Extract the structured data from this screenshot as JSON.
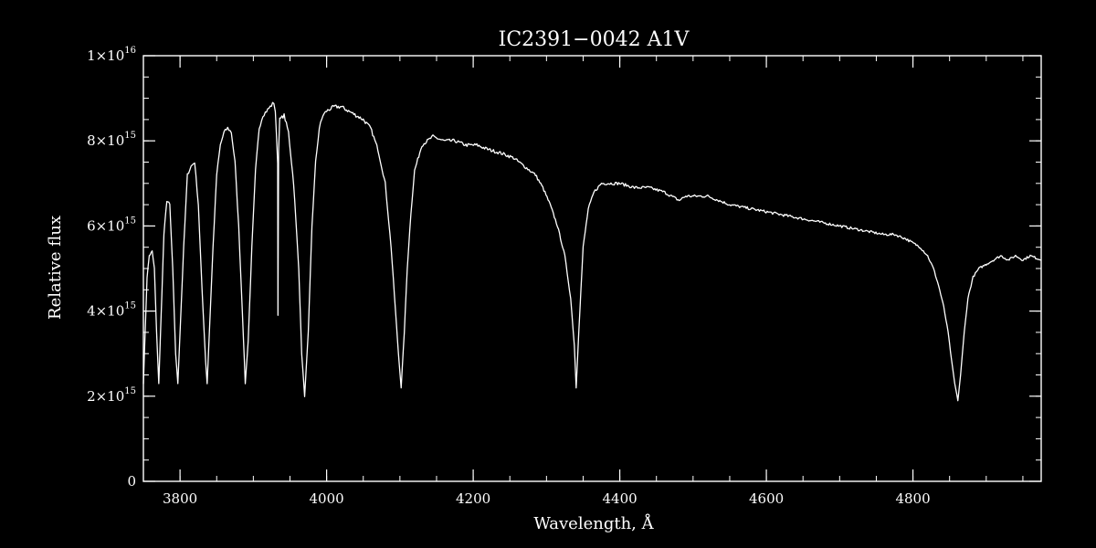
{
  "chart_data": {
    "type": "line",
    "title": "IC2391−0042  A1V",
    "xlabel": "Wavelength, Å",
    "ylabel": "Relative flux",
    "xlim": [
      3750,
      4975
    ],
    "ylim": [
      0,
      1e+16
    ],
    "x_ticks": [
      {
        "value": 3800,
        "label": "3800"
      },
      {
        "value": 4000,
        "label": "4000"
      },
      {
        "value": 4200,
        "label": "4200"
      },
      {
        "value": 4400,
        "label": "4400"
      },
      {
        "value": 4600,
        "label": "4600"
      },
      {
        "value": 4800,
        "label": "4800"
      }
    ],
    "y_ticks": [
      {
        "value": 0,
        "mant": "0",
        "exp": ""
      },
      {
        "value": 2000000000000000.0,
        "mant": "2×10",
        "exp": "15"
      },
      {
        "value": 4000000000000000.0,
        "mant": "4×10",
        "exp": "15"
      },
      {
        "value": 6000000000000000.0,
        "mant": "6×10",
        "exp": "15"
      },
      {
        "value": 8000000000000000.0,
        "mant": "8×10",
        "exp": "15"
      },
      {
        "value": 1e+16,
        "mant": "1×10",
        "exp": "16"
      }
    ],
    "x_minor_step": 50,
    "y_minor_step": 500000000000000.0,
    "grid": false,
    "colors": {
      "background": "#000000",
      "foreground": "#ffffff"
    },
    "series": [
      {
        "x": [
          3750,
          3755,
          3758,
          3762,
          3765,
          3768,
          3771,
          3774,
          3778,
          3782,
          3786,
          3790,
          3794,
          3797,
          3800,
          3805,
          3810,
          3815,
          3820,
          3825,
          3830,
          3835,
          3837,
          3840,
          3845,
          3850,
          3855,
          3860,
          3865,
          3870,
          3875,
          3880,
          3885,
          3889,
          3893,
          3898,
          3903,
          3908,
          3913,
          3918,
          3923,
          3928,
          3930,
          3933.2,
          3933.6,
          3934.5,
          3936,
          3942,
          3948,
          3955,
          3962,
          3966,
          3970,
          3975,
          3980,
          3985,
          3990,
          3995,
          4000,
          4010,
          4020,
          4030,
          4040,
          4050,
          4060,
          4070,
          4080,
          4088,
          4094,
          4098,
          4101.7,
          4106,
          4110,
          4115,
          4120,
          4130,
          4145,
          4160,
          4175,
          4190,
          4205,
          4220,
          4240,
          4255,
          4270,
          4285,
          4295,
          4305,
          4315,
          4325,
          4333,
          4338,
          4340.5,
          4344,
          4350,
          4357,
          4365,
          4375,
          4385,
          4400,
          4420,
          4440,
          4460,
          4481,
          4490,
          4520,
          4550,
          4580,
          4610,
          4640,
          4670,
          4700,
          4730,
          4760,
          4775,
          4790,
          4800,
          4810,
          4820,
          4828,
          4835,
          4842,
          4848,
          4853,
          4857,
          4861.3,
          4865,
          4870,
          4875,
          4882,
          4890,
          4900,
          4910,
          4920,
          4930,
          4940,
          4950,
          4960,
          4975
        ],
        "y": [
          2300000000000000.0,
          4800000000000000.0,
          5300000000000000.0,
          5400000000000000.0,
          5000000000000000.0,
          3500000000000000.0,
          2300000000000000.0,
          3800000000000000.0,
          5800000000000000.0,
          6600000000000000.0,
          6500000000000000.0,
          5000000000000000.0,
          3000000000000000.0,
          2300000000000000.0,
          3500000000000000.0,
          5500000000000000.0,
          7200000000000000.0,
          7400000000000000.0,
          7500000000000000.0,
          6500000000000000.0,
          4500000000000000.0,
          2800000000000000.0,
          2300000000000000.0,
          3500000000000000.0,
          5500000000000000.0,
          7200000000000000.0,
          7900000000000000.0,
          8200000000000000.0,
          8300000000000000.0,
          8200000000000000.0,
          7500000000000000.0,
          6000000000000000.0,
          4000000000000000.0,
          2300000000000000.0,
          3300000000000000.0,
          5500000000000000.0,
          7300000000000000.0,
          8300000000000000.0,
          8600000000000000.0,
          8700000000000000.0,
          8800000000000000.0,
          8900000000000000.0,
          8700000000000000.0,
          7500000000000000.0,
          3900000000000000.0,
          7800000000000000.0,
          8500000000000000.0,
          8600000000000000.0,
          8200000000000000.0,
          7000000000000000.0,
          5000000000000000.0,
          3000000000000000.0,
          2000000000000000.0,
          3500000000000000.0,
          6000000000000000.0,
          7500000000000000.0,
          8300000000000000.0,
          8600000000000000.0,
          8700000000000000.0,
          8800000000000000.0,
          8800000000000000.0,
          8700000000000000.0,
          8600000000000000.0,
          8500000000000000.0,
          8300000000000000.0,
          7800000000000000.0,
          7000000000000000.0,
          5500000000000000.0,
          4000000000000000.0,
          3000000000000000.0,
          2200000000000000.0,
          3500000000000000.0,
          5000000000000000.0,
          6300000000000000.0,
          7300000000000000.0,
          7900000000000000.0,
          8100000000000000.0,
          8000000000000000.0,
          8000000000000000.0,
          7900000000000000.0,
          7900000000000000.0,
          7800000000000000.0,
          7700000000000000.0,
          7600000000000000.0,
          7400000000000000.0,
          7200000000000000.0,
          6900000000000000.0,
          6500000000000000.0,
          6000000000000000.0,
          5300000000000000.0,
          4300000000000000.0,
          3200000000000000.0,
          2200000000000000.0,
          3500000000000000.0,
          5500000000000000.0,
          6400000000000000.0,
          6800000000000000.0,
          7000000000000000.0,
          7000000000000000.0,
          7000000000000000.0,
          6900000000000000.0,
          6900000000000000.0,
          6800000000000000.0,
          6600000000000000.0,
          6700000000000000.0,
          6700000000000000.0,
          6500000000000000.0,
          6400000000000000.0,
          6300000000000000.0,
          6200000000000000.0,
          6100000000000000.0,
          6000000000000000.0,
          5900000000000000.0,
          5800000000000000.0,
          5800000000000000.0,
          5700000000000000.0,
          5600000000000000.0,
          5500000000000000.0,
          5300000000000000.0,
          5000000000000000.0,
          4600000000000000.0,
          4100000000000000.0,
          3500000000000000.0,
          2800000000000000.0,
          2300000000000000.0,
          1900000000000000.0,
          2500000000000000.0,
          3500000000000000.0,
          4300000000000000.0,
          4800000000000000.0,
          5000000000000000.0,
          5100000000000000.0,
          5200000000000000.0,
          5300000000000000.0,
          5200000000000000.0,
          5300000000000000.0,
          5200000000000000.0,
          5300000000000000.0,
          5200000000000000.0
        ]
      }
    ]
  }
}
